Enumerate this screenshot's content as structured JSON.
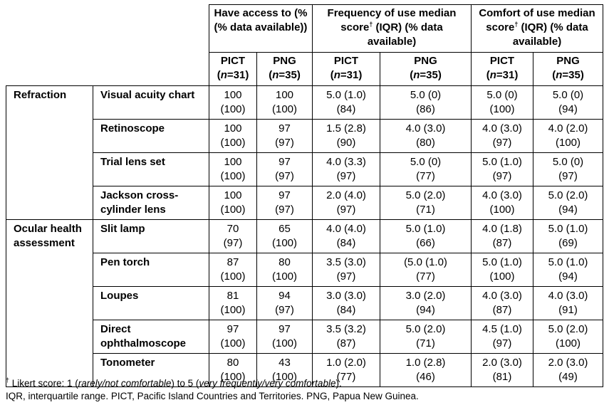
{
  "table": {
    "column_groups": [
      {
        "label": "Have access to (% (% data available))"
      },
      {
        "label": "Frequency of use median score",
        "sup": "†",
        "label2": " (IQR) (% data available)"
      },
      {
        "label": "Comfort of use median score",
        "sup": "†",
        "label2": " (IQR) (% data available)"
      }
    ],
    "subheaders": [
      {
        "region": "PICT",
        "n_prefix": "n",
        "n_suffix": "=31"
      },
      {
        "region": "PNG",
        "n_prefix": "n",
        "n_suffix": "=35"
      },
      {
        "region": "PICT",
        "n_prefix": "n",
        "n_suffix": "=31"
      },
      {
        "region": "PNG",
        "n_prefix": "n",
        "n_suffix": "=35"
      },
      {
        "region": "PICT",
        "n_prefix": "n",
        "n_suffix": "=31"
      },
      {
        "region": "PNG",
        "n_prefix": "n",
        "n_suffix": "=35"
      }
    ],
    "groups": [
      {
        "label": "Refraction"
      },
      {
        "label": "Ocular health assessment"
      }
    ],
    "rows": [
      {
        "item": "Visual acuity chart",
        "cells": [
          [
            "100",
            "(100)"
          ],
          [
            "100",
            "(100)"
          ],
          [
            "5.0 (1.0)",
            "(84)"
          ],
          [
            "5.0 (0)",
            "(86)"
          ],
          [
            "5.0 (0)",
            "(100)"
          ],
          [
            "5.0 (0)",
            "(94)"
          ]
        ]
      },
      {
        "item": "Retinoscope",
        "cells": [
          [
            "100",
            "(100)"
          ],
          [
            "97",
            "(97)"
          ],
          [
            "1.5 (2.8)",
            "(90)"
          ],
          [
            "4.0 (3.0)",
            "(80)"
          ],
          [
            "4.0 (3.0)",
            "(97)"
          ],
          [
            "4.0 (2.0)",
            "(100)"
          ]
        ]
      },
      {
        "item": "Trial lens set",
        "cells": [
          [
            "100",
            "(100)"
          ],
          [
            "97",
            "(97)"
          ],
          [
            "4.0 (3.3)",
            "(97)"
          ],
          [
            "5.0 (0)",
            "(77)"
          ],
          [
            "5.0 (1.0)",
            "(97)"
          ],
          [
            "5.0 (0)",
            "(97)"
          ]
        ]
      },
      {
        "item": "Jackson cross-cylinder lens",
        "cells": [
          [
            "100",
            "(100)"
          ],
          [
            "97",
            "(97)"
          ],
          [
            "2.0 (4.0)",
            "(97)"
          ],
          [
            "5.0 (2.0)",
            "(71)"
          ],
          [
            "4.0 (3.0)",
            "(100)"
          ],
          [
            "5.0 (2.0)",
            "(94)"
          ]
        ]
      },
      {
        "item": "Slit lamp",
        "cells": [
          [
            "70",
            "(97)"
          ],
          [
            "65",
            "(100)"
          ],
          [
            "4.0 (4.0)",
            "(84)"
          ],
          [
            "5.0 (1.0)",
            "(66)"
          ],
          [
            "4.0 (1.8)",
            "(87)"
          ],
          [
            "5.0 (1.0)",
            "(69)"
          ]
        ]
      },
      {
        "item": "Pen torch",
        "cells": [
          [
            "87",
            "(100)"
          ],
          [
            "80",
            "(100)"
          ],
          [
            "3.5 (3.0)",
            "(97)"
          ],
          [
            "(5.0 (1.0)",
            "(77)"
          ],
          [
            "5.0 (1.0)",
            "(100)"
          ],
          [
            "5.0 (1.0)",
            "(94)"
          ]
        ]
      },
      {
        "item": "Loupes",
        "cells": [
          [
            "81",
            "(100)"
          ],
          [
            "94",
            "(97)"
          ],
          [
            "3.0 (3.0)",
            "(84)"
          ],
          [
            "3.0 (2.0)",
            "(94)"
          ],
          [
            "4.0 (3.0)",
            "(87)"
          ],
          [
            "4.0 (3.0)",
            "(91)"
          ]
        ]
      },
      {
        "item": "Direct ophthalmoscope",
        "cells": [
          [
            "97",
            "(100)"
          ],
          [
            "97",
            "(100)"
          ],
          [
            "3.5 (3.2)",
            "(87)"
          ],
          [
            "5.0 (2.0)",
            "(71)"
          ],
          [
            "4.5 (1.0)",
            "(97)"
          ],
          [
            "5.0 (2.0)",
            "(100)"
          ]
        ]
      },
      {
        "item": "Tonometer",
        "cells": [
          [
            "80",
            "(100)"
          ],
          [
            "43",
            "(100)"
          ],
          [
            "1.0 (2.0)",
            "(77)"
          ],
          [
            "1.0 (2.8)",
            "(46)"
          ],
          [
            "2.0 (3.0)",
            "(81)"
          ],
          [
            "2.0 (3.0)",
            "(49)"
          ]
        ]
      }
    ]
  },
  "footnotes": {
    "line1": {
      "mark": "†",
      "a": " Likert score: 1 (",
      "a_i": "rarely/not comfortable",
      "b": ") to 5 (",
      "b_i": "very frequently/very comfortable",
      "c": ")."
    },
    "line2": "IQR, interquartile range. PICT, Pacific Island Countries and Territories. PNG, Papua New Guinea."
  }
}
